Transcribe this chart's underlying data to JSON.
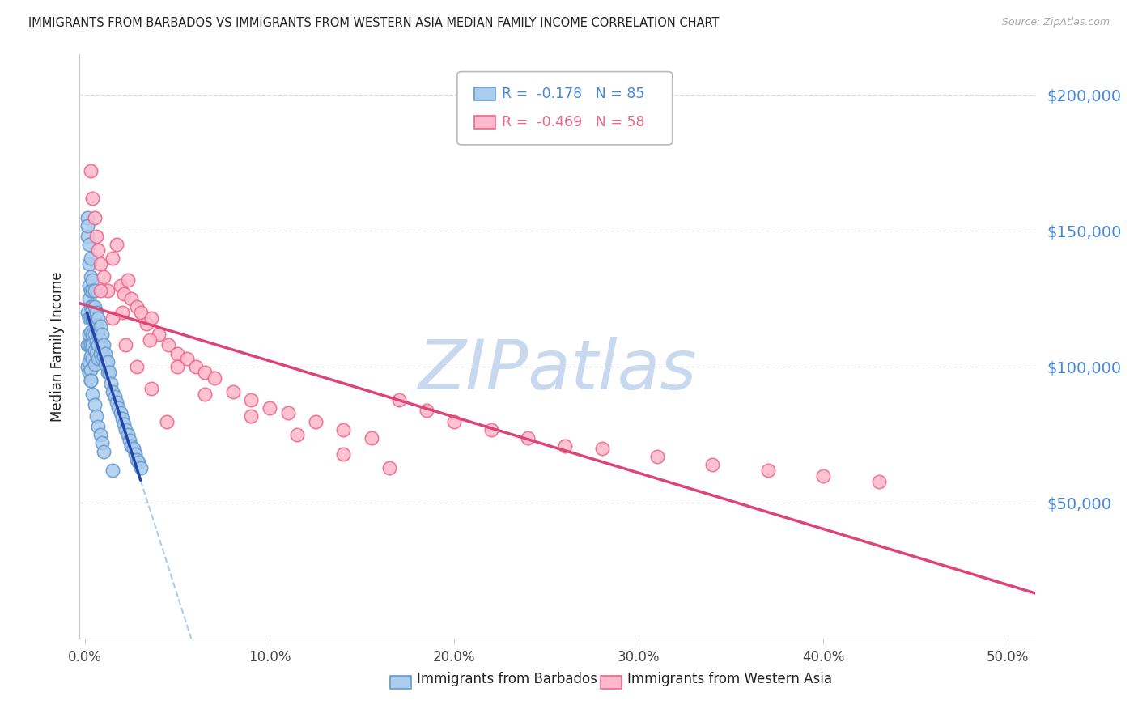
{
  "title": "IMMIGRANTS FROM BARBADOS VS IMMIGRANTS FROM WESTERN ASIA MEDIAN FAMILY INCOME CORRELATION CHART",
  "source": "Source: ZipAtlas.com",
  "ylabel": "Median Family Income",
  "ytick_labels": [
    "$50,000",
    "$100,000",
    "$150,000",
    "$200,000"
  ],
  "ytick_vals": [
    50000,
    100000,
    150000,
    200000
  ],
  "xtick_labels": [
    "0.0%",
    "10.0%",
    "20.0%",
    "30.0%",
    "40.0%",
    "50.0%"
  ],
  "xtick_vals": [
    0.0,
    0.1,
    0.2,
    0.3,
    0.4,
    0.5
  ],
  "ylim_min": 0,
  "ylim_max": 215000,
  "xlim_min": -0.003,
  "xlim_max": 0.515,
  "barbados_face": "#aaccee",
  "barbados_edge": "#6699cc",
  "western_asia_face": "#ffb8cc",
  "western_asia_edge": "#ee6688",
  "trendline_blue": "#2244aa",
  "trendline_pink": "#dd4477",
  "trendline_dashed": "#aaccee",
  "watermark_color": "#c8d8ee",
  "background_color": "#ffffff",
  "grid_color": "#dddddd",
  "title_color": "#222222",
  "ytick_color": "#4488dd",
  "xtick_color": "#444444",
  "legend_blue_color": "#4488dd",
  "legend_pink_color": "#ee6688",
  "R_barbados": -0.178,
  "N_barbados": 85,
  "R_western_asia": -0.469,
  "N_western_asia": 58,
  "barbados_x": [
    0.001,
    0.001,
    0.001,
    0.001,
    0.001,
    0.001,
    0.002,
    0.002,
    0.002,
    0.002,
    0.002,
    0.002,
    0.002,
    0.002,
    0.002,
    0.003,
    0.003,
    0.003,
    0.003,
    0.003,
    0.003,
    0.003,
    0.003,
    0.003,
    0.003,
    0.004,
    0.004,
    0.004,
    0.004,
    0.004,
    0.004,
    0.004,
    0.005,
    0.005,
    0.005,
    0.005,
    0.005,
    0.005,
    0.006,
    0.006,
    0.006,
    0.006,
    0.007,
    0.007,
    0.007,
    0.007,
    0.008,
    0.008,
    0.008,
    0.009,
    0.009,
    0.009,
    0.01,
    0.01,
    0.011,
    0.011,
    0.012,
    0.012,
    0.013,
    0.014,
    0.015,
    0.016,
    0.017,
    0.018,
    0.019,
    0.02,
    0.021,
    0.022,
    0.023,
    0.024,
    0.025,
    0.026,
    0.027,
    0.028,
    0.029,
    0.03,
    0.003,
    0.004,
    0.005,
    0.006,
    0.007,
    0.008,
    0.009,
    0.01,
    0.015
  ],
  "barbados_y": [
    155000,
    148000,
    152000,
    120000,
    108000,
    100000,
    145000,
    138000,
    130000,
    125000,
    118000,
    112000,
    108000,
    102000,
    98000,
    140000,
    133000,
    128000,
    122000,
    118000,
    113000,
    108000,
    104000,
    99000,
    95000,
    132000,
    128000,
    122000,
    118000,
    112000,
    108000,
    103000,
    128000,
    122000,
    117000,
    112000,
    106000,
    101000,
    120000,
    115000,
    109000,
    105000,
    118000,
    112000,
    108000,
    103000,
    115000,
    110000,
    105000,
    112000,
    107000,
    103000,
    108000,
    104000,
    105000,
    101000,
    102000,
    98000,
    98000,
    94000,
    91000,
    89000,
    87000,
    85000,
    83000,
    81000,
    79000,
    77000,
    75000,
    73000,
    71000,
    70000,
    68000,
    66000,
    65000,
    63000,
    95000,
    90000,
    86000,
    82000,
    78000,
    75000,
    72000,
    69000,
    62000
  ],
  "western_asia_x": [
    0.003,
    0.004,
    0.005,
    0.006,
    0.007,
    0.008,
    0.01,
    0.012,
    0.015,
    0.017,
    0.019,
    0.021,
    0.023,
    0.025,
    0.028,
    0.03,
    0.033,
    0.036,
    0.04,
    0.045,
    0.05,
    0.055,
    0.06,
    0.065,
    0.07,
    0.08,
    0.09,
    0.1,
    0.11,
    0.125,
    0.14,
    0.155,
    0.17,
    0.185,
    0.2,
    0.22,
    0.24,
    0.26,
    0.28,
    0.31,
    0.34,
    0.37,
    0.4,
    0.43,
    0.02,
    0.035,
    0.05,
    0.065,
    0.09,
    0.115,
    0.14,
    0.165,
    0.008,
    0.015,
    0.022,
    0.028,
    0.036,
    0.044
  ],
  "western_asia_y": [
    172000,
    162000,
    155000,
    148000,
    143000,
    138000,
    133000,
    128000,
    140000,
    145000,
    130000,
    127000,
    132000,
    125000,
    122000,
    120000,
    116000,
    118000,
    112000,
    108000,
    105000,
    103000,
    100000,
    98000,
    96000,
    91000,
    88000,
    85000,
    83000,
    80000,
    77000,
    74000,
    88000,
    84000,
    80000,
    77000,
    74000,
    71000,
    70000,
    67000,
    64000,
    62000,
    60000,
    58000,
    120000,
    110000,
    100000,
    90000,
    82000,
    75000,
    68000,
    63000,
    128000,
    118000,
    108000,
    100000,
    92000,
    80000
  ]
}
